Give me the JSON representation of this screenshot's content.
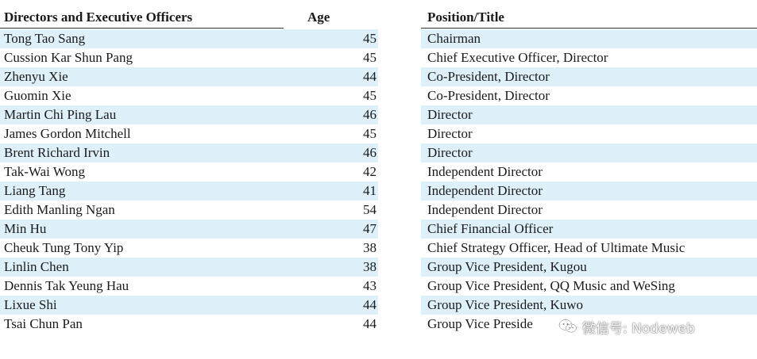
{
  "table": {
    "headers": {
      "name": "Directors and Executive Officers",
      "age": "Age",
      "position": "Position/Title"
    },
    "rows": [
      {
        "name": "Tong Tao Sang",
        "age": "45",
        "position": "Chairman"
      },
      {
        "name": "Cussion Kar Shun Pang",
        "age": "45",
        "position": "Chief Executive Officer, Director"
      },
      {
        "name": "Zhenyu Xie",
        "age": "44",
        "position": "Co-President, Director"
      },
      {
        "name": "Guomin Xie",
        "age": "45",
        "position": "Co-President, Director"
      },
      {
        "name": "Martin Chi Ping Lau",
        "age": "46",
        "position": "Director"
      },
      {
        "name": "James Gordon Mitchell",
        "age": "45",
        "position": "Director"
      },
      {
        "name": "Brent Richard Irvin",
        "age": "46",
        "position": "Director"
      },
      {
        "name": "Tak-Wai Wong",
        "age": "42",
        "position": "Independent Director"
      },
      {
        "name": "Liang Tang",
        "age": "41",
        "position": "Independent Director"
      },
      {
        "name": "Edith Manling Ngan",
        "age": "54",
        "position": "Independent Director"
      },
      {
        "name": "Min Hu",
        "age": "47",
        "position": "Chief Financial Officer"
      },
      {
        "name": "Cheuk Tung Tony Yip",
        "age": "38",
        "position": "Chief Strategy Officer, Head of Ultimate Music"
      },
      {
        "name": "Linlin Chen",
        "age": "38",
        "position": "Group Vice President, Kugou"
      },
      {
        "name": "Dennis Tak Yeung Hau",
        "age": "43",
        "position": "Group Vice President, QQ Music and WeSing"
      },
      {
        "name": "Lixue Shi",
        "age": "44",
        "position": "Group Vice President, Kuwo"
      },
      {
        "name": "Tsai Chun Pan",
        "age": "44",
        "position": "Group Vice Preside"
      }
    ]
  },
  "watermark": {
    "text": "微信号: Nodeweb",
    "icon": "wechat-logo-icon"
  },
  "colors": {
    "row_shade": "#def0fa",
    "rule": "#333333",
    "text": "#1a1a1a"
  }
}
